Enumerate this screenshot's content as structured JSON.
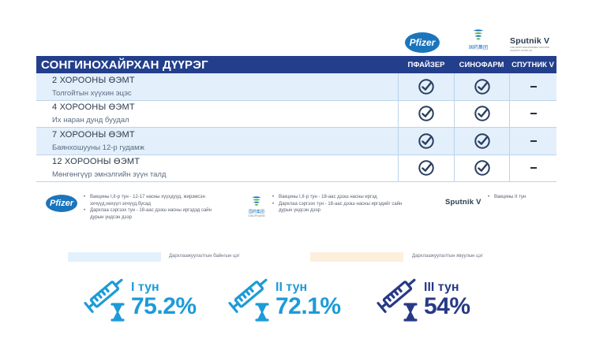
{
  "logos": {
    "pfizer": "Pfizer",
    "sinopharm": "国药集团",
    "sinopharm_sub": "SINOPHARM",
    "sputnik": "Sputnik V",
    "sputnik_sub": "THE FIRST REGISTERED VACCINE AGAINST COVID-19"
  },
  "table": {
    "title": "СОНГИНОХАЙРХАН ДҮҮРЭГ",
    "columns": [
      "ПФАЙЗЕР",
      "СИНОФАРМ",
      "СПУТНИК V"
    ],
    "rows": [
      {
        "title": "2 ХОРООНЫ ӨЭМТ",
        "subtitle": "Толгойтын хүүхин эцэс",
        "pfizer": true,
        "sinopharm": true,
        "sputnik": false
      },
      {
        "title": "4 ХОРООНЫ ӨЭМТ",
        "subtitle": "Их наран дунд буудал",
        "pfizer": true,
        "sinopharm": true,
        "sputnik": false
      },
      {
        "title": "7 ХОРООНЫ ӨЭМТ",
        "subtitle": "Баянхошууны 12-р гудамж",
        "pfizer": true,
        "sinopharm": true,
        "sputnik": false
      },
      {
        "title": "12 ХОРООНЫ ӨЭМТ",
        "subtitle": "Мөнгөнгүүр эмнэлгийн зүүн талд",
        "pfizer": true,
        "sinopharm": true,
        "sputnik": false
      }
    ]
  },
  "notes": {
    "pfizer": [
      "Вакцины I,II-р тун - 12-17 насны хүүхдүүд, жирэмсэн эхчүүд,хөхүүл эхчүүд,бусад",
      "Дархлаа сэргээх тун - 18-аас дээш насны иргэдэд сайн дурын үндсэн дээр"
    ],
    "sinopharm": [
      "Вакцины I,II-р тун - 18-аас дээш насны иргэд",
      "Дархлаа сэргээх тун - 18-аас дээш насны иргэдийг сайн дурын үндсэн дээр"
    ],
    "sputnik": [
      "Вакцины II тун"
    ]
  },
  "legend": {
    "label1": "Дархлаажуулалтын байнгын цэг",
    "label2": "Дархлаажуулалтын явуулын цэг",
    "color1": "#e2f1fc",
    "color2": "#fcefdc"
  },
  "stats": [
    {
      "dose": "I тун",
      "percent": "75.2%",
      "color": "#1d9bd8",
      "icon": "syringe-hourglass-icon"
    },
    {
      "dose": "II тун",
      "percent": "72.1%",
      "color": "#1d9bd8",
      "icon": "syringe-hourglass-icon"
    },
    {
      "dose": "III тун",
      "percent": "54%",
      "color": "#273a86",
      "icon": "syringe-hourglass-icon"
    }
  ],
  "colors": {
    "header_bg": "#233f8c",
    "row_alt_bg": "#e3effb",
    "check": "#2a3f5f"
  }
}
